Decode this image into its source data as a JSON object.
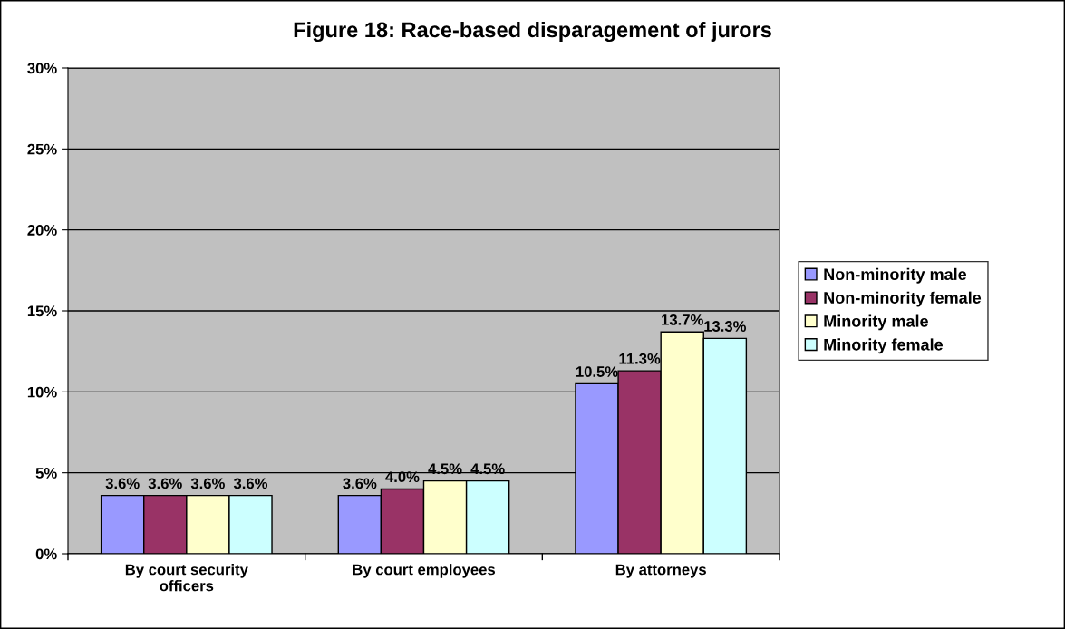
{
  "chart_data": {
    "type": "bar",
    "title": "Figure 18: Race-based disparagement of jurors",
    "categories": [
      "By court security\nofficers",
      "By court employees",
      "By attorneys"
    ],
    "series": [
      {
        "name": "Non-minority male",
        "color": "#9999ff",
        "values": [
          3.6,
          3.6,
          10.5
        ],
        "value_labels": [
          "3.6%",
          "3.6%",
          "10.5%"
        ]
      },
      {
        "name": "Non-minority female",
        "color": "#993366",
        "values": [
          3.6,
          4.0,
          11.3
        ],
        "value_labels": [
          "3.6%",
          "4.0%",
          "11.3%"
        ]
      },
      {
        "name": "Minority male",
        "color": "#ffffcc",
        "values": [
          3.6,
          4.5,
          13.7
        ],
        "value_labels": [
          "3.6%",
          "4.5%",
          "13.7%"
        ]
      },
      {
        "name": "Minority female",
        "color": "#ccffff",
        "values": [
          3.6,
          4.5,
          13.3
        ],
        "value_labels": [
          "3.6%",
          "4.5%",
          "13.3%"
        ]
      }
    ],
    "ylim": [
      0,
      30
    ],
    "yticks": [
      {
        "value": 0,
        "label": "0%"
      },
      {
        "value": 5,
        "label": "5%"
      },
      {
        "value": 10,
        "label": "10%"
      },
      {
        "value": 15,
        "label": "15%"
      },
      {
        "value": 20,
        "label": "20%"
      },
      {
        "value": 25,
        "label": "25%"
      },
      {
        "value": 30,
        "label": "30%"
      }
    ],
    "grid": "y",
    "legend": "right"
  }
}
